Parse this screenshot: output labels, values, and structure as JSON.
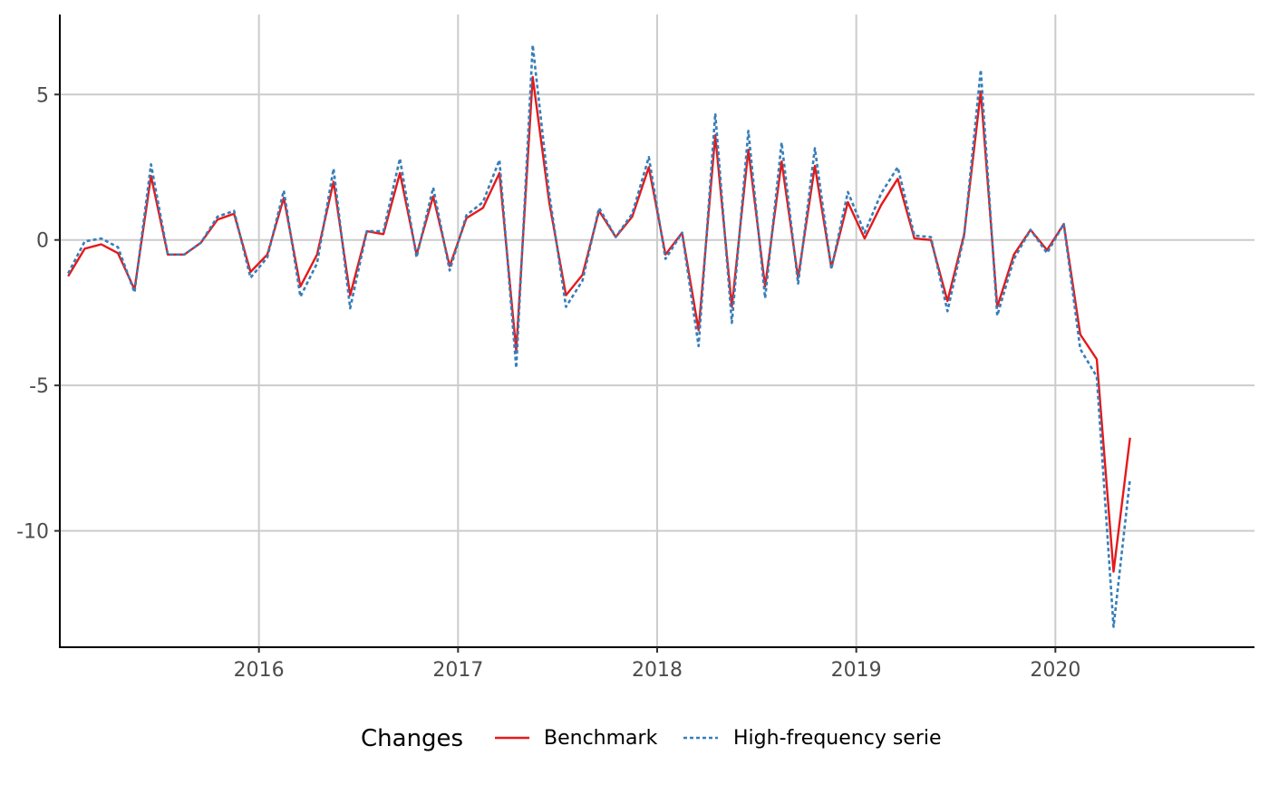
{
  "chart_data": {
    "type": "line",
    "title": "",
    "xlabel": "",
    "ylabel": "",
    "xlim": [
      2015.0,
      2021.0
    ],
    "ylim": [
      -14.0,
      7.75
    ],
    "x_ticks": [
      2016,
      2017,
      2018,
      2019,
      2020
    ],
    "x_tick_labels": [
      "2016",
      "2017",
      "2018",
      "2019",
      "2020"
    ],
    "y_ticks": [
      5,
      0,
      -5,
      -10
    ],
    "y_tick_labels": [
      "5",
      "0",
      "-5",
      "-10"
    ],
    "grid": true,
    "legend": {
      "position": "bottom",
      "title": "Changes"
    },
    "x": [
      2015.042,
      2015.125,
      2015.208,
      2015.292,
      2015.375,
      2015.458,
      2015.542,
      2015.625,
      2015.708,
      2015.792,
      2015.875,
      2015.958,
      2016.042,
      2016.125,
      2016.208,
      2016.292,
      2016.375,
      2016.458,
      2016.542,
      2016.625,
      2016.708,
      2016.792,
      2016.875,
      2016.958,
      2017.042,
      2017.125,
      2017.208,
      2017.292,
      2017.375,
      2017.458,
      2017.542,
      2017.625,
      2017.708,
      2017.792,
      2017.875,
      2017.958,
      2018.042,
      2018.125,
      2018.208,
      2018.292,
      2018.375,
      2018.458,
      2018.542,
      2018.625,
      2018.708,
      2018.792,
      2018.875,
      2018.958,
      2019.042,
      2019.125,
      2019.208,
      2019.292,
      2019.375,
      2019.458,
      2019.542,
      2019.625,
      2019.708,
      2019.792,
      2019.875,
      2019.958,
      2020.042,
      2020.125,
      2020.208,
      2020.292,
      2020.375
    ],
    "series": [
      {
        "name": "Benchmark",
        "color": "#e41a1c",
        "dash": "solid",
        "values": [
          -1.25,
          -0.3,
          -0.15,
          -0.45,
          -1.7,
          2.2,
          -0.5,
          -0.5,
          -0.1,
          0.7,
          0.9,
          -1.1,
          -0.5,
          1.45,
          -1.6,
          -0.5,
          2.0,
          -1.9,
          0.3,
          0.2,
          2.3,
          -0.5,
          1.5,
          -0.9,
          0.75,
          1.1,
          2.3,
          -3.8,
          5.6,
          1.3,
          -1.9,
          -1.2,
          1.0,
          0.1,
          0.8,
          2.5,
          -0.5,
          0.25,
          -3.1,
          3.6,
          -2.3,
          3.1,
          -1.6,
          2.7,
          -1.3,
          2.55,
          -0.95,
          1.3,
          0.05,
          1.2,
          2.1,
          0.05,
          0.0,
          -2.1,
          0.2,
          5.1,
          -2.3,
          -0.5,
          0.35,
          -0.35,
          0.55,
          -3.25,
          -4.1,
          -11.4,
          -6.8
        ]
      },
      {
        "name": "High-frequency serie",
        "color": "#377eb8",
        "dash": "dotted",
        "values": [
          -1.15,
          -0.05,
          0.05,
          -0.25,
          -1.8,
          2.6,
          -0.5,
          -0.5,
          -0.1,
          0.8,
          1.0,
          -1.3,
          -0.6,
          1.7,
          -1.95,
          -0.8,
          2.45,
          -2.35,
          0.3,
          0.3,
          2.8,
          -0.6,
          1.8,
          -1.05,
          0.85,
          1.3,
          2.75,
          -4.4,
          6.7,
          1.6,
          -2.3,
          -1.4,
          1.1,
          0.1,
          0.9,
          2.85,
          -0.65,
          0.25,
          -3.65,
          4.35,
          -2.85,
          3.75,
          -2.0,
          3.35,
          -1.5,
          3.15,
          -1.0,
          1.65,
          0.25,
          1.6,
          2.5,
          0.15,
          0.1,
          -2.45,
          0.15,
          5.85,
          -2.6,
          -0.65,
          0.35,
          -0.45,
          0.55,
          -3.75,
          -4.7,
          -13.3,
          -8.2
        ]
      }
    ]
  }
}
